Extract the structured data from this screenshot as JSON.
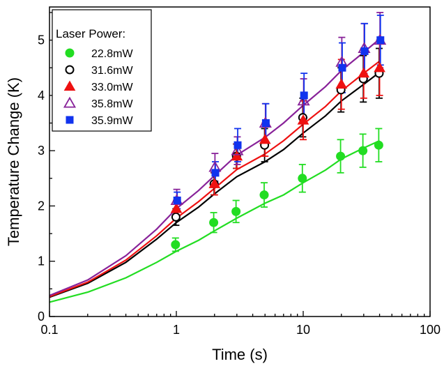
{
  "chart_data": {
    "type": "scatter",
    "title": "",
    "xlabel": "Time (s)",
    "ylabel": "Temperature Change (K)",
    "xscale": "log",
    "xlim": [
      0.1,
      100
    ],
    "ylim": [
      0,
      5.6
    ],
    "xticks": [
      0.1,
      1,
      10,
      100
    ],
    "xtick_labels": [
      "0.1",
      "1",
      "10",
      "100"
    ],
    "yticks": [
      0,
      1,
      2,
      3,
      4,
      5
    ],
    "ytick_labels": [
      "0",
      "1",
      "2",
      "3",
      "4",
      "5"
    ],
    "grid": false,
    "legend": {
      "title": "Laser Power:",
      "placement": "top-left"
    },
    "x": [
      1,
      2,
      3,
      5,
      10,
      20,
      30,
      40
    ],
    "series": [
      {
        "name": "22.8mW",
        "marker": "filled-circle",
        "color": "#22dd22",
        "values": [
          1.3,
          1.7,
          1.9,
          2.2,
          2.5,
          2.9,
          3.0,
          3.1
        ],
        "error": [
          0.12,
          0.18,
          0.2,
          0.22,
          0.25,
          0.3,
          0.3,
          0.3
        ],
        "fit": [
          [
            0.1,
            0.26
          ],
          [
            0.2,
            0.44
          ],
          [
            0.4,
            0.7
          ],
          [
            0.7,
            0.98
          ],
          [
            1,
            1.18
          ],
          [
            1.5,
            1.38
          ],
          [
            2,
            1.55
          ],
          [
            3,
            1.78
          ],
          [
            5,
            2.05
          ],
          [
            7,
            2.2
          ],
          [
            10,
            2.42
          ],
          [
            15,
            2.65
          ],
          [
            20,
            2.85
          ],
          [
            30,
            3.05
          ],
          [
            40,
            3.18
          ]
        ]
      },
      {
        "name": "31.6mW",
        "marker": "open-circle",
        "color": "#000000",
        "values": [
          1.8,
          2.4,
          2.9,
          3.1,
          3.6,
          4.1,
          4.3,
          4.4
        ],
        "error": [
          0.15,
          0.2,
          0.22,
          0.3,
          0.35,
          0.4,
          0.42,
          0.45
        ],
        "fit": [
          [
            0.1,
            0.35
          ],
          [
            0.2,
            0.6
          ],
          [
            0.4,
            0.98
          ],
          [
            0.7,
            1.4
          ],
          [
            1,
            1.7
          ],
          [
            1.5,
            1.98
          ],
          [
            2,
            2.22
          ],
          [
            3,
            2.53
          ],
          [
            5,
            2.8
          ],
          [
            7,
            3.02
          ],
          [
            10,
            3.32
          ],
          [
            15,
            3.63
          ],
          [
            20,
            3.9
          ],
          [
            30,
            4.2
          ],
          [
            40,
            4.42
          ]
        ]
      },
      {
        "name": "33.0mW",
        "marker": "filled-triangle",
        "color": "#ee1111",
        "values": [
          1.95,
          2.4,
          2.9,
          3.2,
          3.55,
          4.2,
          4.4,
          4.5
        ],
        "error": [
          0.15,
          0.2,
          0.22,
          0.3,
          0.35,
          0.45,
          0.45,
          0.5
        ],
        "fit": [
          [
            0.1,
            0.36
          ],
          [
            0.2,
            0.62
          ],
          [
            0.4,
            1.02
          ],
          [
            0.7,
            1.46
          ],
          [
            1,
            1.78
          ],
          [
            1.5,
            2.08
          ],
          [
            2,
            2.32
          ],
          [
            3,
            2.66
          ],
          [
            5,
            2.94
          ],
          [
            7,
            3.18
          ],
          [
            10,
            3.48
          ],
          [
            15,
            3.8
          ],
          [
            20,
            4.08
          ],
          [
            30,
            4.4
          ],
          [
            40,
            4.62
          ]
        ]
      },
      {
        "name": "35.8mW",
        "marker": "open-triangle",
        "color": "#882299",
        "values": [
          2.1,
          2.7,
          3.0,
          3.5,
          3.9,
          4.6,
          4.85,
          5.0
        ],
        "error": [
          0.2,
          0.25,
          0.25,
          0.35,
          0.4,
          0.45,
          0.45,
          0.5
        ],
        "fit": [
          [
            0.1,
            0.38
          ],
          [
            0.2,
            0.66
          ],
          [
            0.4,
            1.1
          ],
          [
            0.7,
            1.58
          ],
          [
            1,
            1.95
          ],
          [
            1.5,
            2.28
          ],
          [
            2,
            2.55
          ],
          [
            3,
            2.92
          ],
          [
            5,
            3.24
          ],
          [
            7,
            3.5
          ],
          [
            10,
            3.82
          ],
          [
            15,
            4.16
          ],
          [
            20,
            4.45
          ],
          [
            30,
            4.78
          ],
          [
            40,
            5.02
          ]
        ]
      },
      {
        "name": "35.9mW",
        "marker": "filled-square",
        "color": "#1133ee",
        "values": [
          2.1,
          2.6,
          3.1,
          3.5,
          4.0,
          4.5,
          4.8,
          5.0
        ],
        "error": [
          0.15,
          0.2,
          0.3,
          0.35,
          0.4,
          0.45,
          0.5,
          0.45
        ],
        "fit": []
      }
    ]
  }
}
